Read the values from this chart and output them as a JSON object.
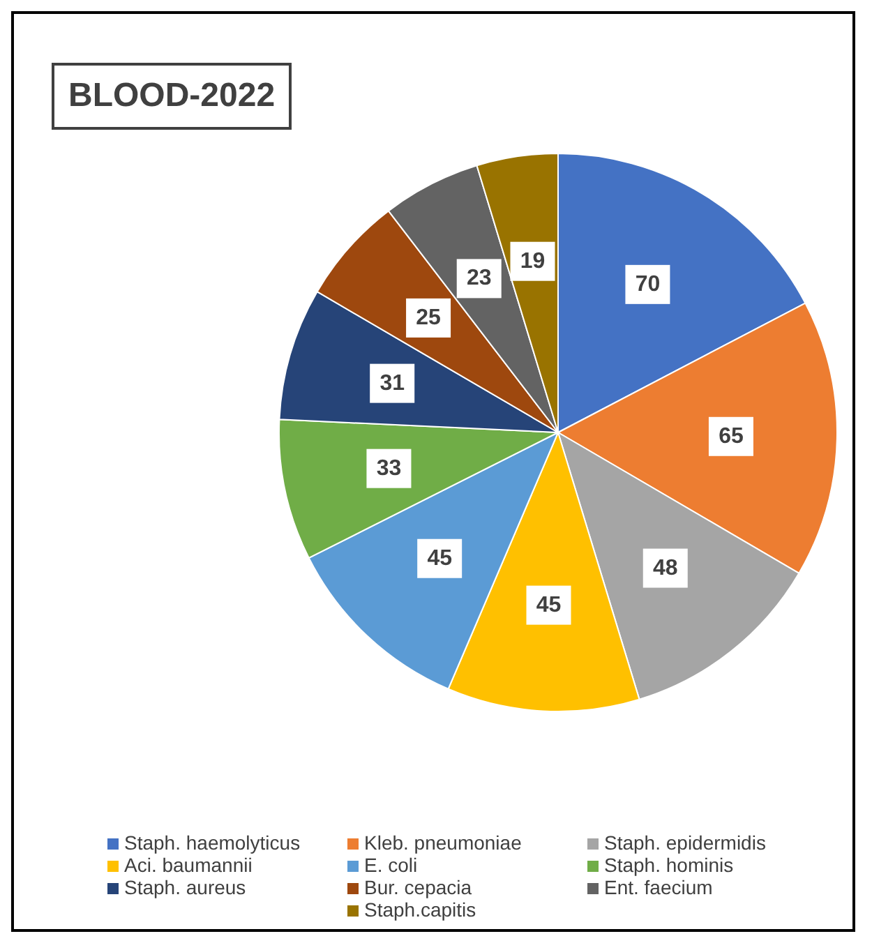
{
  "chart_data": {
    "type": "pie",
    "title": "BLOOD-2022",
    "categories": [
      "Staph. haemolyticus",
      "Kleb. pneumoniae",
      "Staph. epidermidis",
      "Aci. baumannii",
      "E. coli",
      "Staph. hominis",
      "Staph. aureus",
      "Bur. cepacia",
      "Ent. faecium",
      "Staph.capitis"
    ],
    "values": [
      70,
      65,
      48,
      45,
      45,
      33,
      31,
      25,
      23,
      19
    ],
    "colors": [
      "#4472c4",
      "#ed7d31",
      "#a5a5a5",
      "#ffc000",
      "#5b9bd5",
      "#70ad47",
      "#264478",
      "#9e480e",
      "#636363",
      "#997300"
    ],
    "data_labels": true,
    "legend": "bottom"
  }
}
